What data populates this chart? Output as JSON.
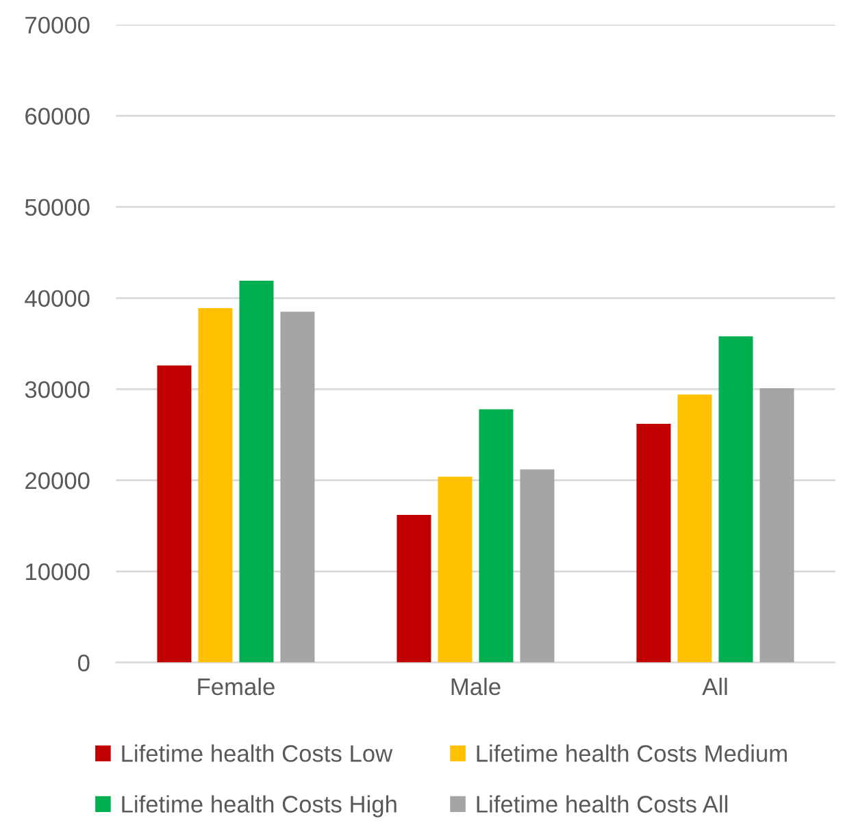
{
  "chart_data": {
    "type": "bar",
    "categories": [
      "Female",
      "Male",
      "All"
    ],
    "series": [
      {
        "name": "Lifetime health Costs Low",
        "color": "#c00000",
        "values": [
          32600,
          16200,
          26200
        ]
      },
      {
        "name": "Lifetime health Costs Medium",
        "color": "#ffc000",
        "values": [
          38900,
          20400,
          29400
        ]
      },
      {
        "name": "Lifetime health Costs High",
        "color": "#00b050",
        "values": [
          41900,
          27800,
          35800
        ]
      },
      {
        "name": "Lifetime health Costs All",
        "color": "#a5a5a5",
        "values": [
          38500,
          21200,
          30100
        ]
      }
    ],
    "ylim": [
      0,
      70000
    ],
    "yticks": [
      0,
      10000,
      20000,
      30000,
      40000,
      50000,
      60000,
      70000
    ],
    "grid": "y",
    "legend": "bottom"
  }
}
